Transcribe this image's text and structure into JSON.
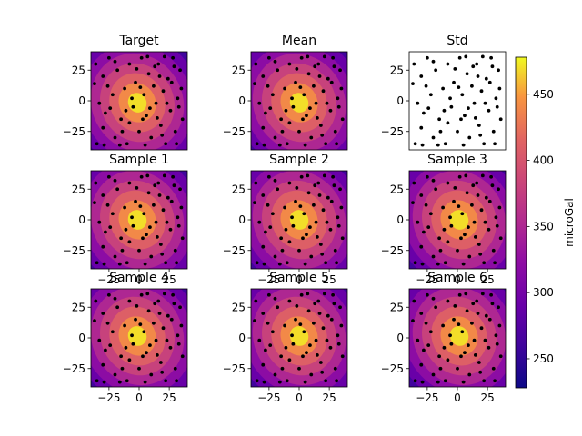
{
  "colors": {
    "colormap": "plasma",
    "point_color": "#000000",
    "background": "#ffffff"
  },
  "chart_data": {
    "type": "heatmap",
    "layout": "3x3 grid of contour plots with shared colorbar",
    "colorbar": {
      "label": "microGal",
      "range": [
        228,
        478
      ],
      "ticks": [
        250,
        300,
        350,
        400,
        450
      ]
    },
    "xlim": [
      -40,
      40
    ],
    "ylim": [
      -40,
      40
    ],
    "x_ticks": [
      -25,
      0,
      25
    ],
    "y_ticks": [
      25,
      0,
      -25
    ],
    "field": {
      "center_x": 0,
      "center_y": 0,
      "peak": 470,
      "edge": 250
    },
    "panels": [
      {
        "title": "Target",
        "filled": true,
        "show_x_ticks": false,
        "show_y_ticks": true
      },
      {
        "title": "Mean",
        "filled": true,
        "show_x_ticks": false,
        "show_y_ticks": true
      },
      {
        "title": "Std",
        "filled": false,
        "show_x_ticks": false,
        "show_y_ticks": true
      },
      {
        "title": "Sample 1",
        "filled": true,
        "show_x_ticks": true,
        "show_y_ticks": true
      },
      {
        "title": "Sample 2",
        "filled": true,
        "show_x_ticks": true,
        "show_y_ticks": true
      },
      {
        "title": "Sample 3",
        "filled": true,
        "show_x_ticks": true,
        "show_y_ticks": true
      },
      {
        "title": "Sample 4",
        "filled": true,
        "show_x_ticks": true,
        "show_y_ticks": true
      },
      {
        "title": "Sample 5",
        "filled": true,
        "show_x_ticks": true,
        "show_y_ticks": true
      },
      {
        "title": "Sample 6",
        "filled": true,
        "show_x_ticks": true,
        "show_y_ticks": true
      }
    ],
    "points": [
      [
        -35,
        -35
      ],
      [
        -30,
        20
      ],
      [
        -28,
        -10
      ],
      [
        -25,
        35
      ],
      [
        -22,
        5
      ],
      [
        -20,
        -30
      ],
      [
        -18,
        25
      ],
      [
        -15,
        -15
      ],
      [
        -12,
        10
      ],
      [
        -10,
        -35
      ],
      [
        -8,
        30
      ],
      [
        -5,
        -5
      ],
      [
        -3,
        15
      ],
      [
        0,
        -25
      ],
      [
        2,
        35
      ],
      [
        4,
        5
      ],
      [
        6,
        -12
      ],
      [
        8,
        22
      ],
      [
        10,
        -30
      ],
      [
        12,
        12
      ],
      [
        14,
        -2
      ],
      [
        16,
        30
      ],
      [
        18,
        -20
      ],
      [
        20,
        8
      ],
      [
        22,
        -35
      ],
      [
        24,
        18
      ],
      [
        26,
        -8
      ],
      [
        28,
        35
      ],
      [
        30,
        -25
      ],
      [
        32,
        2
      ],
      [
        34,
        25
      ],
      [
        36,
        -15
      ],
      [
        -33,
        -2
      ],
      [
        -30,
        -22
      ],
      [
        -26,
        12
      ],
      [
        -20,
        32
      ],
      [
        -14,
        -25
      ],
      [
        -8,
        -18
      ],
      [
        -2,
        26
      ],
      [
        5,
        -36
      ],
      [
        9,
        -6
      ],
      [
        13,
        28
      ],
      [
        19,
        -28
      ],
      [
        23,
        -2
      ],
      [
        27,
        15
      ],
      [
        31,
        -35
      ],
      [
        35,
        10
      ],
      [
        -36,
        30
      ],
      [
        -24,
        -6
      ],
      [
        -6,
        2
      ],
      [
        3,
        -15
      ],
      [
        17,
        20
      ],
      [
        33,
        -5
      ],
      [
        -16,
        -36
      ],
      [
        7,
        36
      ],
      [
        -11,
        -8
      ],
      [
        15,
        -14
      ],
      [
        29,
        28
      ],
      [
        -37,
        14
      ],
      [
        21,
        36
      ],
      [
        -29,
        -36
      ],
      [
        1,
        11
      ]
    ]
  }
}
